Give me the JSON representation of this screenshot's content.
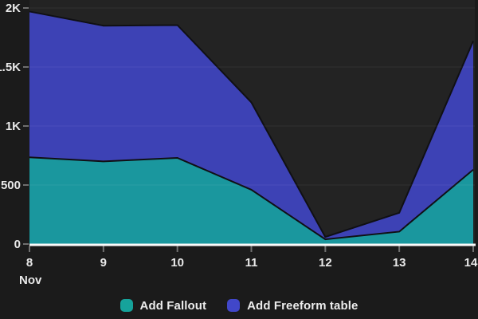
{
  "chart_data": {
    "type": "area",
    "stacked": true,
    "title": "",
    "x_labels": [
      "8",
      "9",
      "10",
      "11",
      "12",
      "13",
      "14"
    ],
    "x_month_label": "Nov",
    "series": [
      {
        "name": "Add Fallout",
        "color": "#16A39B",
        "values": [
          735,
          700,
          730,
          460,
          40,
          105,
          630
        ]
      },
      {
        "name": "Add Freeform table",
        "color": "#4147C9",
        "values": [
          1235,
          1150,
          1125,
          740,
          20,
          160,
          1090
        ]
      }
    ],
    "stacked_totals": [
      1970,
      1850,
      1855,
      1200,
      60,
      265,
      1720
    ],
    "ylim": [
      0,
      2000
    ],
    "y_ticks": [
      {
        "value": 0,
        "label": "0"
      },
      {
        "value": 500,
        "label": "500"
      },
      {
        "value": 1000,
        "label": "1K"
      },
      {
        "value": 1500,
        "label": "1.5K"
      },
      {
        "value": 2000,
        "label": "2K"
      }
    ],
    "grid": "horizontal",
    "legend_position": "bottom"
  },
  "colors": {
    "page_background": "#1b1b1b",
    "plot_background": "#232323",
    "grid_line": "rgba(255,255,255,0.07)",
    "zero_axis_line": "#fbfbfb",
    "tick_mark": "#6f6f6f",
    "axis_label": "#e9e9e9",
    "area_outline": "#101014"
  },
  "legend": {
    "items": [
      {
        "label": "Add Fallout",
        "color": "#16A39B"
      },
      {
        "label": "Add Freeform table",
        "color": "#4147C9"
      }
    ]
  }
}
